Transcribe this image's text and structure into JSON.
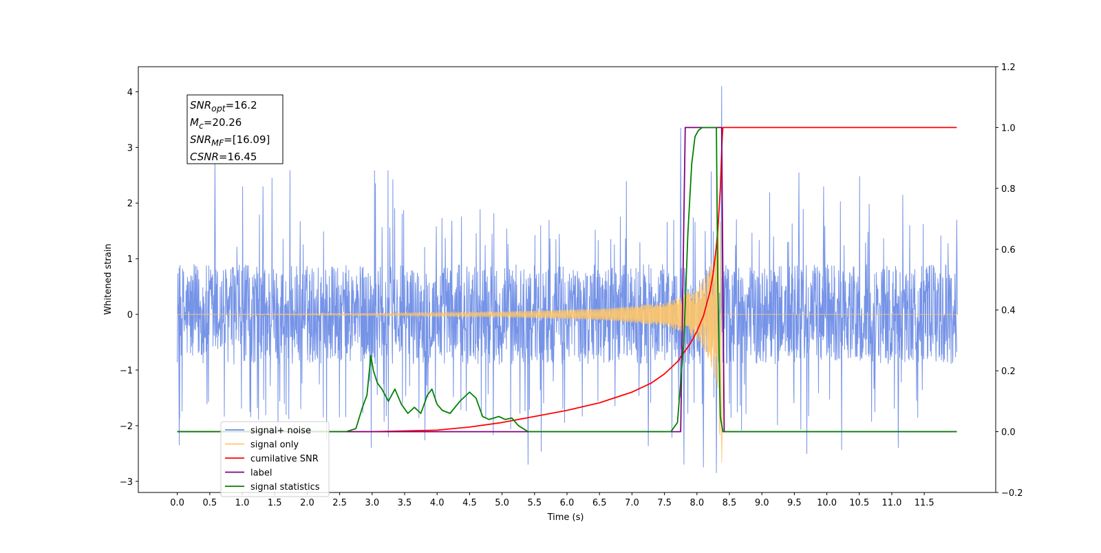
{
  "chart_data": {
    "type": "line",
    "title": "",
    "xlabel": "Time (s)",
    "ylabel_left": "Whitened strain",
    "ylabel_right": "",
    "xlim": [
      -0.6,
      12.6
    ],
    "ylim_left": [
      -3.2,
      4.45
    ],
    "ylim_right": [
      -0.2,
      1.2
    ],
    "x_ticks": [
      0.0,
      0.5,
      1.0,
      1.5,
      2.0,
      2.5,
      3.0,
      3.5,
      4.0,
      4.5,
      5.0,
      5.5,
      6.0,
      6.5,
      7.0,
      7.5,
      8.0,
      8.5,
      9.0,
      9.5,
      10.0,
      10.5,
      11.0,
      11.5
    ],
    "x_tick_labels": [
      "0.0",
      "0.5",
      "1.0",
      "1.5",
      "2.0",
      "2.5",
      "3.0",
      "3.5",
      "4.0",
      "4.5",
      "5.0",
      "5.5",
      "6.0",
      "6.5",
      "7.0",
      "7.5",
      "8.0",
      "8.5",
      "9.0",
      "9.5",
      "10.0",
      "10.5",
      "11.0",
      "11.5"
    ],
    "y_left_ticks": [
      -3,
      -2,
      -1,
      0,
      1,
      2,
      3,
      4
    ],
    "y_left_tick_labels": [
      "−3",
      "−2",
      "−1",
      "0",
      "1",
      "2",
      "3",
      "4"
    ],
    "y_right_ticks": [
      -0.2,
      0.0,
      0.2,
      0.4,
      0.6,
      0.8,
      1.0,
      1.2
    ],
    "y_right_tick_labels": [
      "−0.2",
      "0.0",
      "0.2",
      "0.4",
      "0.6",
      "0.8",
      "1.0",
      "1.2"
    ],
    "grid": false,
    "legend_position": "lower-left",
    "series": [
      {
        "name": "signal+ noise",
        "axis": "left",
        "color": "#6e8de6",
        "kind": "noise_band",
        "x_range": [
          0.0,
          12.0
        ],
        "core_amplitude": 0.9,
        "typical_peak": 1.8,
        "max_peak": 4.1,
        "min_trough": -2.85,
        "notable_peaks": [
          [
            0.58,
            2.75
          ],
          [
            1.32,
            2.3
          ],
          [
            7.75,
            3.35
          ],
          [
            8.38,
            4.1
          ],
          [
            9.57,
            2.55
          ],
          [
            9.95,
            2.3
          ],
          [
            12.0,
            1.7
          ]
        ],
        "notable_troughs": [
          [
            0.03,
            -2.35
          ],
          [
            5.4,
            -2.7
          ],
          [
            7.8,
            -2.7
          ],
          [
            8.1,
            -2.75
          ],
          [
            8.3,
            -2.85
          ],
          [
            11.1,
            -2.4
          ]
        ]
      },
      {
        "name": "signal only",
        "axis": "left",
        "color": "#ffc66a",
        "kind": "chirp",
        "x_range": [
          0.0,
          12.0
        ],
        "merger_time": 8.38,
        "envelope": [
          [
            0.0,
            0.0
          ],
          [
            3.0,
            0.02
          ],
          [
            5.0,
            0.05
          ],
          [
            6.5,
            0.1
          ],
          [
            7.5,
            0.2
          ],
          [
            8.0,
            0.45
          ],
          [
            8.2,
            0.85
          ],
          [
            8.3,
            1.3
          ],
          [
            8.36,
            2.3
          ],
          [
            8.38,
            -2.75
          ],
          [
            8.42,
            0.0
          ],
          [
            12.0,
            0.0
          ]
        ]
      },
      {
        "name": "cumilative SNR",
        "axis": "right",
        "color": "#ff0000",
        "x": [
          0.0,
          2.0,
          3.0,
          4.0,
          4.5,
          5.0,
          5.5,
          6.0,
          6.5,
          7.0,
          7.3,
          7.5,
          7.7,
          7.9,
          8.0,
          8.1,
          8.2,
          8.25,
          8.3,
          8.33,
          8.36,
          8.38,
          8.39,
          8.4,
          12.0
        ],
        "y": [
          0.0,
          0.0,
          0.0,
          0.005,
          0.015,
          0.03,
          0.05,
          0.07,
          0.095,
          0.13,
          0.16,
          0.19,
          0.23,
          0.29,
          0.33,
          0.38,
          0.46,
          0.52,
          0.61,
          0.69,
          0.8,
          0.92,
          0.97,
          1.0,
          1.0
        ]
      },
      {
        "name": "label",
        "axis": "right",
        "color": "#800080",
        "x": [
          0.0,
          7.75,
          7.82,
          8.38,
          8.42,
          12.0
        ],
        "y": [
          0.0,
          0.0,
          1.0,
          1.0,
          0.0,
          0.0
        ]
      },
      {
        "name": "signal statistics",
        "axis": "right",
        "color": "#008000",
        "x": [
          0.0,
          2.6,
          2.75,
          2.85,
          2.92,
          2.98,
          3.02,
          3.08,
          3.15,
          3.25,
          3.35,
          3.45,
          3.55,
          3.65,
          3.75,
          3.85,
          3.92,
          4.0,
          4.08,
          4.2,
          4.35,
          4.5,
          4.6,
          4.7,
          4.8,
          4.95,
          5.05,
          5.15,
          5.25,
          5.4,
          5.5,
          7.6,
          7.7,
          7.8,
          7.86,
          7.92,
          7.97,
          8.02,
          8.08,
          8.15,
          8.3,
          8.32,
          8.36,
          8.4,
          12.0
        ],
        "y": [
          0.0,
          0.0,
          0.01,
          0.08,
          0.12,
          0.25,
          0.2,
          0.16,
          0.14,
          0.1,
          0.14,
          0.09,
          0.06,
          0.08,
          0.06,
          0.12,
          0.14,
          0.09,
          0.07,
          0.06,
          0.1,
          0.13,
          0.11,
          0.05,
          0.04,
          0.05,
          0.04,
          0.045,
          0.02,
          0.0,
          0.0,
          0.0,
          0.03,
          0.3,
          0.65,
          0.88,
          0.97,
          0.99,
          1.0,
          1.0,
          1.0,
          0.5,
          0.05,
          0.0,
          0.0
        ]
      }
    ],
    "annotations": [
      {
        "text_html": "<i>SNR</i><sub><i>opt</i></sub>=16.2",
        "plain": "SNR_opt=16.2"
      },
      {
        "text_html": "<i>M</i><sub><i>c</i></sub>=20.26",
        "plain": "M_c=20.26"
      },
      {
        "text_html": "<i>SNR</i><sub><i>MF</i></sub>=[16.09]",
        "plain": "SNR_MF=[16.09]"
      },
      {
        "text_html": "<i>CSNR</i>=16.45",
        "plain": "CSNR=16.45"
      }
    ]
  }
}
